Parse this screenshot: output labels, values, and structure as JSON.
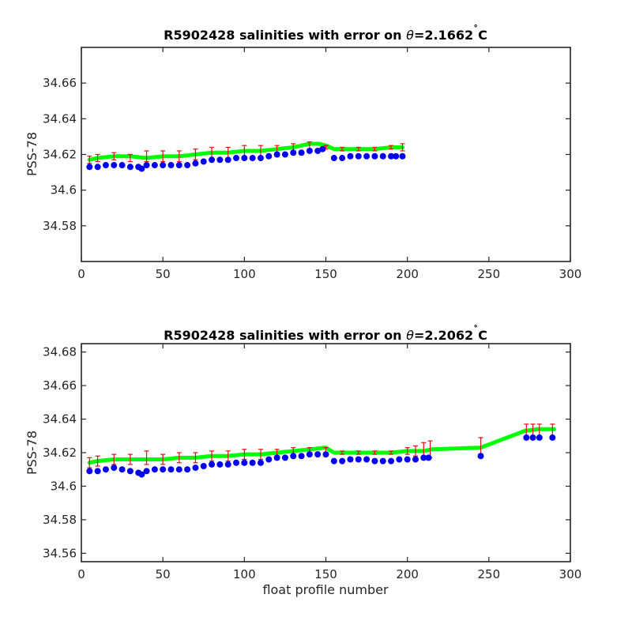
{
  "chart_data": [
    {
      "type": "line",
      "title": "R5902428 salinities with error on θ=2.1662˚C",
      "title_parts": {
        "prefix": "R5902428 salinities with error on ",
        "symbol": "θ",
        "suffix": "=2.1662",
        "degree": "˚",
        "unit": "C"
      },
      "xlabel": "",
      "ylabel": "PSS-78",
      "xlim": [
        0,
        300
      ],
      "ylim": [
        34.56,
        34.68
      ],
      "xticks": [
        0,
        50,
        100,
        150,
        200,
        250,
        300
      ],
      "xtick_labels": [
        "0",
        "50",
        "100",
        "150",
        "200",
        "250",
        "300"
      ],
      "yticks": [
        34.58,
        34.6,
        34.62,
        34.64,
        34.66
      ],
      "ytick_labels": [
        "34.58",
        "34.6",
        "34.62",
        "34.64",
        "34.66"
      ],
      "grid": false,
      "series": [
        {
          "role": "calibrated-line",
          "color": "#00ff00",
          "x": [
            5,
            10,
            20,
            30,
            40,
            50,
            60,
            70,
            80,
            90,
            100,
            110,
            120,
            130,
            140,
            146,
            150,
            155,
            160,
            170,
            180,
            190,
            197
          ],
          "y": [
            34.617,
            34.618,
            34.619,
            34.619,
            34.618,
            34.619,
            34.619,
            34.62,
            34.621,
            34.621,
            34.622,
            34.622,
            34.623,
            34.624,
            34.626,
            34.626,
            34.625,
            34.623,
            34.623,
            34.623,
            34.623,
            34.624,
            34.624
          ]
        },
        {
          "role": "calibrated-with-error",
          "color": "#dd1111",
          "x": [
            5,
            10,
            20,
            30,
            40,
            50,
            60,
            70,
            80,
            90,
            100,
            110,
            120,
            130,
            140,
            150,
            160,
            170,
            180,
            190,
            197
          ],
          "y": [
            34.617,
            34.618,
            34.619,
            34.618,
            34.619,
            34.619,
            34.619,
            34.62,
            34.621,
            34.621,
            34.622,
            34.622,
            34.623,
            34.624,
            34.625,
            34.624,
            34.623,
            34.623,
            34.623,
            34.624,
            34.624
          ],
          "err": [
            0.002,
            0.002,
            0.002,
            0.002,
            0.003,
            0.003,
            0.003,
            0.003,
            0.003,
            0.003,
            0.003,
            0.003,
            0.002,
            0.002,
            0.002,
            0.001,
            0.001,
            0.001,
            0.001,
            0.001,
            0.002
          ]
        },
        {
          "role": "uncalibrated",
          "color": "#0000ee",
          "x": [
            5,
            10,
            15,
            20,
            25,
            30,
            35,
            37,
            40,
            45,
            50,
            55,
            60,
            65,
            70,
            75,
            80,
            85,
            90,
            95,
            100,
            105,
            110,
            115,
            120,
            125,
            130,
            135,
            140,
            145,
            148,
            155,
            160,
            165,
            170,
            175,
            180,
            185,
            190,
            193,
            197
          ],
          "y": [
            34.613,
            34.613,
            34.614,
            34.614,
            34.614,
            34.613,
            34.613,
            34.612,
            34.614,
            34.614,
            34.614,
            34.614,
            34.614,
            34.614,
            34.615,
            34.616,
            34.617,
            34.617,
            34.617,
            34.618,
            34.618,
            34.618,
            34.618,
            34.619,
            34.62,
            34.62,
            34.621,
            34.621,
            34.622,
            34.622,
            34.623,
            34.618,
            34.618,
            34.619,
            34.619,
            34.619,
            34.619,
            34.619,
            34.619,
            34.619,
            34.619
          ]
        }
      ]
    },
    {
      "type": "line",
      "title": "R5902428 salinities with error on θ=2.2062˚C",
      "title_parts": {
        "prefix": "R5902428 salinities with error on ",
        "symbol": "θ",
        "suffix": "=2.2062",
        "degree": "˚",
        "unit": "C"
      },
      "xlabel": "float profile number",
      "ylabel": "PSS-78",
      "xlim": [
        0,
        300
      ],
      "ylim": [
        34.555,
        34.685
      ],
      "xticks": [
        0,
        50,
        100,
        150,
        200,
        250,
        300
      ],
      "xtick_labels": [
        "0",
        "50",
        "100",
        "150",
        "200",
        "250",
        "300"
      ],
      "yticks": [
        34.56,
        34.58,
        34.6,
        34.62,
        34.64,
        34.66,
        34.68
      ],
      "ytick_labels": [
        "34.56",
        "34.58",
        "34.6",
        "34.62",
        "34.64",
        "34.66",
        "34.68"
      ],
      "grid": false,
      "series": [
        {
          "role": "calibrated-line",
          "color": "#00ff00",
          "x": [
            5,
            10,
            20,
            30,
            40,
            50,
            60,
            70,
            80,
            90,
            100,
            110,
            120,
            130,
            140,
            150,
            155,
            160,
            170,
            180,
            190,
            200,
            210,
            215,
            245,
            272,
            280,
            290
          ],
          "y": [
            34.614,
            34.615,
            34.616,
            34.616,
            34.616,
            34.616,
            34.617,
            34.617,
            34.618,
            34.618,
            34.619,
            34.619,
            34.62,
            34.621,
            34.622,
            34.623,
            34.62,
            34.62,
            34.62,
            34.62,
            34.62,
            34.621,
            34.621,
            34.622,
            34.623,
            34.633,
            34.634,
            34.634
          ]
        },
        {
          "role": "calibrated-with-error",
          "color": "#dd1111",
          "x": [
            5,
            10,
            20,
            30,
            40,
            50,
            60,
            70,
            80,
            90,
            100,
            110,
            120,
            130,
            140,
            150,
            160,
            170,
            180,
            190,
            200,
            205,
            210,
            214,
            245,
            273,
            277,
            281,
            289
          ],
          "y": [
            34.614,
            34.615,
            34.616,
            34.616,
            34.617,
            34.616,
            34.617,
            34.617,
            34.618,
            34.618,
            34.619,
            34.619,
            34.62,
            34.621,
            34.621,
            34.621,
            34.62,
            34.62,
            34.62,
            34.62,
            34.621,
            34.621,
            34.622,
            34.622,
            34.623,
            34.633,
            34.633,
            34.633,
            34.633
          ],
          "err": [
            0.003,
            0.003,
            0.003,
            0.003,
            0.004,
            0.003,
            0.003,
            0.003,
            0.003,
            0.003,
            0.003,
            0.003,
            0.002,
            0.002,
            0.002,
            0.002,
            0.001,
            0.001,
            0.001,
            0.001,
            0.002,
            0.003,
            0.004,
            0.005,
            0.006,
            0.004,
            0.004,
            0.004,
            0.004
          ]
        },
        {
          "role": "uncalibrated",
          "color": "#0000ee",
          "x": [
            5,
            10,
            15,
            20,
            25,
            30,
            35,
            37,
            40,
            45,
            50,
            55,
            60,
            65,
            70,
            75,
            80,
            85,
            90,
            95,
            100,
            105,
            110,
            115,
            120,
            125,
            130,
            135,
            140,
            145,
            150,
            155,
            160,
            165,
            170,
            175,
            180,
            185,
            190,
            195,
            200,
            205,
            210,
            213,
            245,
            273,
            277,
            281,
            289
          ],
          "y": [
            34.609,
            34.609,
            34.61,
            34.611,
            34.61,
            34.609,
            34.608,
            34.607,
            34.609,
            34.61,
            34.61,
            34.61,
            34.61,
            34.61,
            34.611,
            34.612,
            34.613,
            34.613,
            34.613,
            34.614,
            34.614,
            34.614,
            34.614,
            34.616,
            34.617,
            34.617,
            34.618,
            34.618,
            34.619,
            34.619,
            34.619,
            34.615,
            34.615,
            34.616,
            34.616,
            34.616,
            34.615,
            34.615,
            34.615,
            34.616,
            34.616,
            34.616,
            34.617,
            34.617,
            34.618,
            34.629,
            34.629,
            34.629,
            34.629
          ]
        }
      ]
    }
  ]
}
